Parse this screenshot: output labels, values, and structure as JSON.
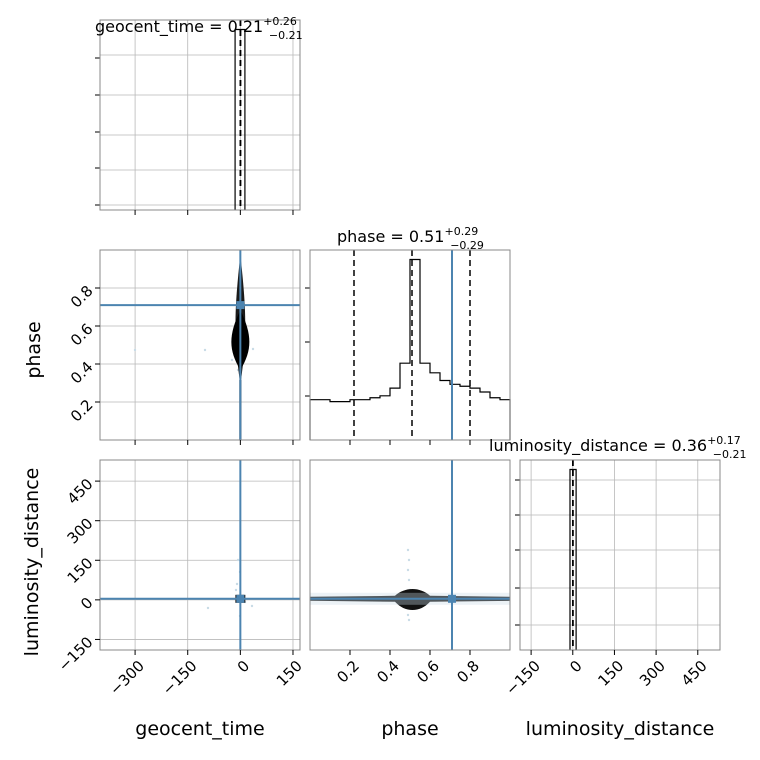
{
  "chart_data": {
    "type": "corner",
    "parameters": [
      "geocent_time",
      "phase",
      "luminosity_distance"
    ],
    "titles": [
      {
        "param": "geocent_time",
        "base": "geocent_time = 0.21",
        "upper": "+0.26",
        "lower": "−0.21"
      },
      {
        "param": "phase",
        "base": "phase = 0.51",
        "upper": "+0.29",
        "lower": "−0.29"
      },
      {
        "param": "luminosity_distance",
        "base": "luminosity_distance = 0.36",
        "upper": "+0.17",
        "lower": "−0.21"
      }
    ],
    "axis_labels": {
      "x": [
        "geocent_time",
        "phase",
        "luminosity_distance"
      ],
      "y": [
        "phase",
        "luminosity_distance"
      ]
    },
    "ranges": {
      "geocent_time": [
        -400,
        170
      ],
      "phase": [
        0.0,
        1.0
      ],
      "luminosity_distance": [
        -190,
        530
      ]
    },
    "ticks": {
      "geocent_time": [
        "−300",
        "−150",
        "0",
        "150"
      ],
      "phase": [
        "0.2",
        "0.4",
        "0.6",
        "0.8"
      ],
      "luminosity_distance": [
        "−150",
        "0",
        "150",
        "300",
        "450"
      ]
    },
    "tick_values": {
      "geocent_time": [
        -300,
        -150,
        0,
        150
      ],
      "phase": [
        0.2,
        0.4,
        0.6,
        0.8
      ],
      "luminosity_distance": [
        -150,
        0,
        150,
        300,
        450
      ]
    },
    "truths": {
      "geocent_time": 0.0,
      "phase": 0.71,
      "luminosity_distance": 4.0
    },
    "quantiles": {
      "geocent_time": [
        0.0,
        0.21,
        0.47
      ],
      "phase": [
        0.22,
        0.51,
        0.8
      ],
      "luminosity_distance": [
        0.15,
        0.36,
        0.53
      ]
    },
    "marginals": {
      "geocent_time": {
        "edges": [
          -15,
          13
        ],
        "counts": [
          1.0
        ]
      },
      "luminosity_distance": {
        "edges": [
          -10,
          12
        ],
        "counts": [
          1.0
        ]
      },
      "phase": {
        "edges": [
          0.0,
          0.05,
          0.1,
          0.15,
          0.2,
          0.25,
          0.3,
          0.35,
          0.4,
          0.45,
          0.5,
          0.55,
          0.6,
          0.65,
          0.7,
          0.75,
          0.8,
          0.85,
          0.9,
          0.95,
          1.0
        ],
        "counts": [
          0.21,
          0.21,
          0.2,
          0.2,
          0.21,
          0.21,
          0.22,
          0.23,
          0.27,
          0.4,
          0.94,
          0.4,
          0.35,
          0.31,
          0.29,
          0.28,
          0.27,
          0.25,
          0.22,
          0.21
        ]
      }
    },
    "grid": true,
    "colors": {
      "truth": "#4c84b0",
      "hist": "#000000",
      "grid": "#b8b8b8",
      "scatter": "#c8dbe6"
    }
  }
}
